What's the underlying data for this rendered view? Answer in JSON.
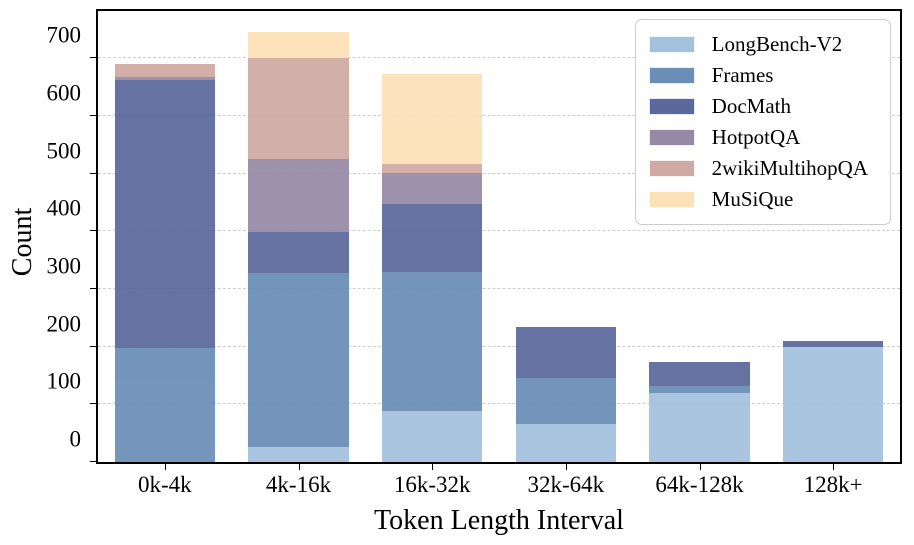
{
  "chart_data": {
    "type": "bar",
    "stacked": true,
    "title": "",
    "xlabel": "Token Length Interval",
    "ylabel": "Count",
    "categories": [
      "0k-4k",
      "4k-16k",
      "16k-32k",
      "32k-64k",
      "64k-128k",
      "128k+"
    ],
    "series": [
      {
        "name": "LongBench-V2",
        "color": "#a4c1dd",
        "values": [
          0,
          26,
          89,
          66,
          120,
          199
        ]
      },
      {
        "name": "Frames",
        "color": "#6a8eb5",
        "values": [
          197,
          301,
          240,
          79,
          11,
          0
        ]
      },
      {
        "name": "DocMath",
        "color": "#5a689b",
        "values": [
          465,
          71,
          118,
          90,
          43,
          11
        ]
      },
      {
        "name": "HotpotQA",
        "color": "#9689a5",
        "values": [
          6,
          128,
          54,
          0,
          0,
          0
        ]
      },
      {
        "name": "2wikiMultihopQA",
        "color": "#d0a9a3",
        "values": [
          22,
          174,
          15,
          0,
          0,
          0
        ]
      },
      {
        "name": "MuSiQue",
        "color": "#fce1b8",
        "values": [
          0,
          45,
          156,
          0,
          0,
          0
        ]
      }
    ],
    "ylim": [
      0,
      782
    ],
    "yticks": [
      0,
      100,
      200,
      300,
      400,
      500,
      600,
      700
    ],
    "grid": "horizontal-dashed",
    "legend_position": "upper-right"
  }
}
